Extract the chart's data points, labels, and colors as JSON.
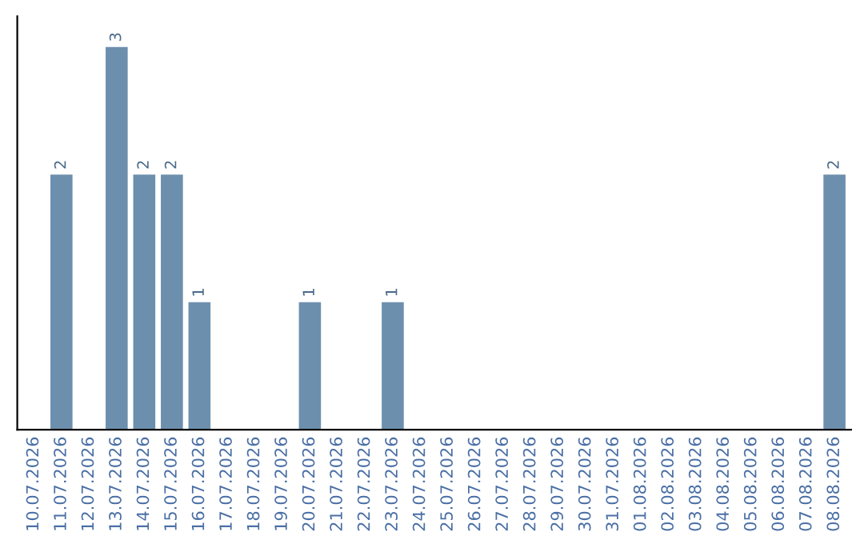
{
  "chart_data": {
    "type": "bar",
    "categories": [
      "10.07.2026",
      "11.07.2026",
      "12.07.2026",
      "13.07.2026",
      "14.07.2026",
      "15.07.2026",
      "16.07.2026",
      "17.07.2026",
      "18.07.2026",
      "19.07.2026",
      "20.07.2026",
      "21.07.2026",
      "22.07.2026",
      "23.07.2026",
      "24.07.2026",
      "25.07.2026",
      "26.07.2026",
      "27.07.2026",
      "28.07.2026",
      "29.07.2026",
      "30.07.2026",
      "31.07.2026",
      "01.08.2026",
      "02.08.2026",
      "03.08.2026",
      "04.08.2026",
      "05.08.2026",
      "06.08.2026",
      "07.08.2026",
      "08.08.2026"
    ],
    "values": [
      0,
      2,
      0,
      3,
      2,
      2,
      1,
      0,
      0,
      0,
      1,
      0,
      0,
      1,
      0,
      0,
      0,
      0,
      0,
      0,
      0,
      0,
      0,
      0,
      0,
      0,
      0,
      0,
      0,
      2
    ],
    "value_labels": [
      null,
      "2",
      null,
      "3",
      "2",
      "2",
      "1",
      null,
      null,
      null,
      "1",
      null,
      null,
      "1",
      null,
      null,
      null,
      null,
      null,
      null,
      null,
      null,
      null,
      null,
      null,
      null,
      null,
      null,
      null,
      "2"
    ],
    "color": "#6d8fae",
    "grid": false,
    "legend": false
  }
}
